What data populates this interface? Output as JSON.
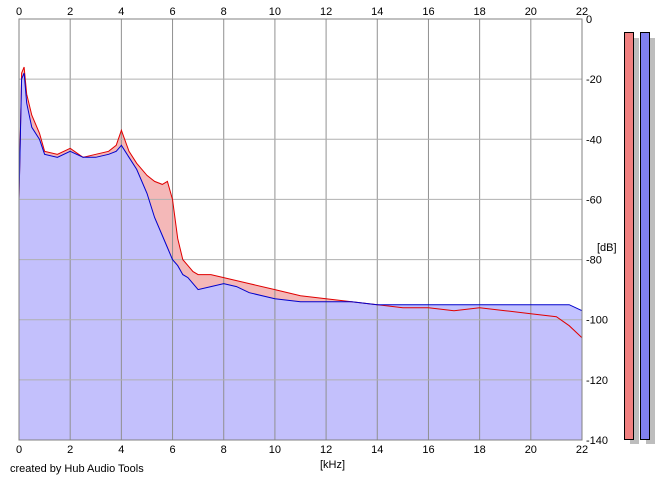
{
  "chart_data": {
    "type": "area",
    "xlabel": "[kHz]",
    "ylabel": "[dB]",
    "xlim": [
      0,
      22
    ],
    "ylim": [
      -140,
      0
    ],
    "x_ticks": [
      0,
      2,
      4,
      6,
      8,
      10,
      12,
      14,
      16,
      18,
      20,
      22
    ],
    "y_ticks": [
      0,
      -20,
      -40,
      -60,
      -80,
      -100,
      -120,
      -140
    ],
    "grid": true,
    "series": [
      {
        "color": "#e00000",
        "fill": "#f4b8b8",
        "x": [
          0,
          0.1,
          0.2,
          0.3,
          0.5,
          0.8,
          1.0,
          1.5,
          2.0,
          2.5,
          3.0,
          3.5,
          3.8,
          4.0,
          4.3,
          4.6,
          5.0,
          5.3,
          5.6,
          5.8,
          6.0,
          6.2,
          6.4,
          6.6,
          6.8,
          7.0,
          7.5,
          8.0,
          8.5,
          9.0,
          10.0,
          11.0,
          12.0,
          13.0,
          14.0,
          15.0,
          16.0,
          17.0,
          18.0,
          19.0,
          20.0,
          21.0,
          21.5,
          22.0
        ],
        "values": [
          -60,
          -18,
          -16,
          -25,
          -32,
          -38,
          -44,
          -45,
          -43,
          -46,
          -45,
          -44,
          -42,
          -37,
          -44,
          -48,
          -52,
          -54,
          -55,
          -54,
          -60,
          -73,
          -80,
          -82,
          -84,
          -85,
          -85,
          -86,
          -87,
          -88,
          -90,
          -92,
          -93,
          -94,
          -95,
          -96,
          -96,
          -97,
          -96,
          -97,
          -98,
          -99,
          -102,
          -106
        ]
      },
      {
        "color": "#0000cc",
        "fill": "#c0c0ff",
        "x": [
          0,
          0.1,
          0.2,
          0.3,
          0.5,
          0.8,
          1.0,
          1.5,
          2.0,
          2.5,
          3.0,
          3.5,
          3.8,
          4.0,
          4.3,
          4.6,
          5.0,
          5.3,
          5.6,
          5.8,
          6.0,
          6.2,
          6.4,
          6.6,
          6.8,
          7.0,
          7.5,
          8.0,
          8.5,
          9.0,
          10.0,
          11.0,
          12.0,
          13.0,
          14.0,
          15.0,
          16.0,
          17.0,
          18.0,
          19.0,
          20.0,
          21.0,
          21.5,
          22.0
        ],
        "values": [
          -60,
          -20,
          -18,
          -28,
          -36,
          -40,
          -45,
          -46,
          -44,
          -46,
          -46,
          -45,
          -44,
          -42,
          -46,
          -50,
          -58,
          -66,
          -72,
          -76,
          -80,
          -82,
          -85,
          -86,
          -88,
          -90,
          -89,
          -88,
          -89,
          -91,
          -93,
          -94,
          -94,
          -94,
          -95,
          -95,
          -95,
          -95,
          -95,
          -95,
          -95,
          -95,
          -95,
          -97
        ]
      }
    ],
    "level_meters": [
      {
        "color": "#f08080",
        "level": 1.0
      },
      {
        "color": "#8080f0",
        "level": 1.0
      }
    ]
  },
  "footer": {
    "credit": "created by Hub Audio Tools"
  }
}
